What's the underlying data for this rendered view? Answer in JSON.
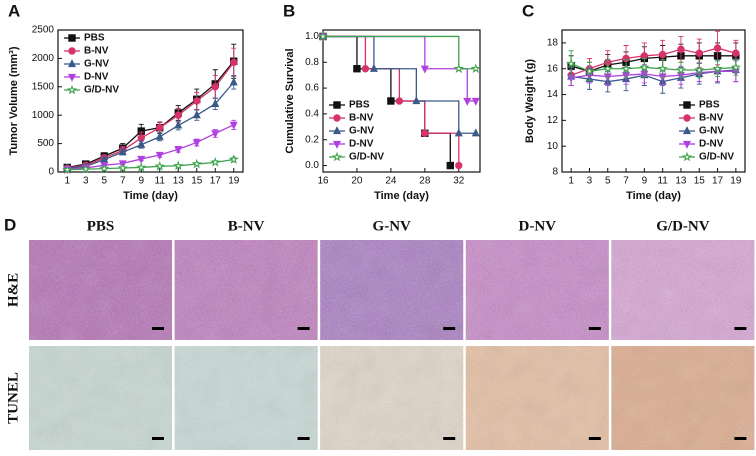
{
  "chart_data": [
    {
      "type": "line",
      "panel": "A",
      "xlabel": "Time (day)",
      "ylabel": "Tumor Volume (mm³)",
      "x": [
        1,
        3,
        5,
        7,
        9,
        11,
        13,
        15,
        17,
        19
      ],
      "xlim": [
        0,
        20
      ],
      "xticks": [
        1,
        3,
        5,
        7,
        9,
        11,
        13,
        15,
        17,
        19
      ],
      "ylim": [
        0,
        2500
      ],
      "yticks": [
        0,
        500,
        1000,
        1500,
        2000,
        2500
      ],
      "legend": "upper left",
      "series": [
        {
          "name": "PBS",
          "color": "#111111",
          "marker": "square",
          "values": [
            80,
            140,
            280,
            420,
            720,
            780,
            1040,
            1280,
            1550,
            1950
          ],
          "errors": [
            20,
            40,
            60,
            80,
            120,
            100,
            130,
            180,
            250,
            300
          ]
        },
        {
          "name": "B-NV",
          "color": "#d6336c",
          "marker": "circle",
          "values": [
            70,
            120,
            250,
            380,
            600,
            780,
            1000,
            1250,
            1500,
            1930
          ],
          "errors": [
            20,
            30,
            50,
            70,
            100,
            90,
            120,
            150,
            200,
            250
          ]
        },
        {
          "name": "G-NV",
          "color": "#3b5a8a",
          "marker": "triangle-up",
          "values": [
            60,
            100,
            220,
            350,
            480,
            620,
            820,
            1000,
            1200,
            1580
          ],
          "errors": [
            15,
            25,
            40,
            50,
            60,
            70,
            80,
            90,
            100,
            120
          ]
        },
        {
          "name": "D-NV",
          "color": "#b040e0",
          "marker": "triangle-down",
          "values": [
            50,
            70,
            120,
            150,
            230,
            300,
            400,
            520,
            680,
            830
          ],
          "errors": [
            10,
            15,
            20,
            25,
            30,
            40,
            50,
            60,
            70,
            80
          ]
        },
        {
          "name": "G/D-NV",
          "color": "#3fa34d",
          "marker": "star",
          "values": [
            40,
            50,
            60,
            70,
            80,
            100,
            110,
            140,
            170,
            220
          ],
          "errors": [
            10,
            10,
            10,
            15,
            15,
            20,
            20,
            25,
            30,
            40
          ]
        }
      ]
    },
    {
      "type": "step",
      "panel": "B",
      "xlabel": "Time (day)",
      "ylabel": "Cumulative Survival",
      "xlim": [
        16,
        34.5
      ],
      "xticks": [
        16,
        20,
        24,
        28,
        32
      ],
      "ylim": [
        -0.05,
        1.05
      ],
      "yticks": [
        {
          "value": 0,
          "label": "0.0"
        },
        0.2,
        0.4,
        0.6,
        0.8,
        {
          "value": 1,
          "label": "1.0"
        }
      ],
      "legend": "lower left",
      "series": [
        {
          "name": "PBS",
          "color": "#111111",
          "marker": "square",
          "x": [
            16,
            20,
            24,
            28,
            31
          ],
          "values": [
            1,
            0.75,
            0.5,
            0.25,
            0
          ]
        },
        {
          "name": "B-NV",
          "color": "#d6336c",
          "marker": "circle",
          "x": [
            16,
            21,
            25,
            28,
            32
          ],
          "values": [
            1,
            0.75,
            0.5,
            0.25,
            0
          ]
        },
        {
          "name": "G-NV",
          "color": "#3b5a8a",
          "marker": "triangle-up",
          "x": [
            16,
            22,
            27,
            32,
            34
          ],
          "values": [
            1,
            0.75,
            0.5,
            0.25,
            0.25
          ]
        },
        {
          "name": "D-NV",
          "color": "#b040e0",
          "marker": "triangle-down",
          "x": [
            16,
            28,
            33,
            34
          ],
          "values": [
            1,
            0.75,
            0.5,
            0.5
          ]
        },
        {
          "name": "G/D-NV",
          "color": "#3fa34d",
          "marker": "star",
          "x": [
            16,
            32,
            34
          ],
          "values": [
            1,
            0.75,
            0.75
          ]
        }
      ]
    },
    {
      "type": "line",
      "panel": "C",
      "xlabel": "Time (day)",
      "ylabel": "Body Weight (g)",
      "x": [
        1,
        3,
        5,
        7,
        9,
        11,
        13,
        15,
        17,
        19
      ],
      "xlim": [
        0,
        20
      ],
      "xticks": [
        1,
        3,
        5,
        7,
        9,
        11,
        13,
        15,
        17,
        19
      ],
      "ylim": [
        8,
        19
      ],
      "yticks": [
        8,
        10,
        12,
        14,
        16,
        18
      ],
      "legend": "lower right",
      "series": [
        {
          "name": "PBS",
          "color": "#111111",
          "marker": "square",
          "values": [
            16.2,
            15.8,
            16.3,
            16.5,
            16.8,
            16.9,
            17.0,
            17.0,
            17.0,
            17.0
          ],
          "errors": [
            0.8,
            0.7,
            0.8,
            0.8,
            0.9,
            0.9,
            0.9,
            1.0,
            1.0,
            1.0
          ]
        },
        {
          "name": "B-NV",
          "color": "#d6336c",
          "marker": "circle",
          "values": [
            15.5,
            16.0,
            16.5,
            16.8,
            17.0,
            17.1,
            17.5,
            17.2,
            17.6,
            17.2
          ],
          "errors": [
            0.8,
            0.8,
            0.9,
            1.0,
            1.0,
            1.1,
            1.0,
            1.1,
            1.3,
            1.0
          ]
        },
        {
          "name": "G-NV",
          "color": "#3b5a8a",
          "marker": "triangle-up",
          "values": [
            15.4,
            15.2,
            15.0,
            15.2,
            15.5,
            15.0,
            15.3,
            15.6,
            15.8,
            15.9
          ],
          "errors": [
            0.7,
            0.8,
            0.8,
            0.9,
            0.8,
            0.9,
            0.8,
            0.8,
            0.9,
            0.9
          ]
        },
        {
          "name": "D-NV",
          "color": "#b040e0",
          "marker": "triangle-down",
          "values": [
            15.3,
            15.5,
            15.4,
            15.5,
            15.6,
            15.4,
            15.5,
            15.7,
            15.8,
            15.8
          ],
          "errors": [
            0.6,
            0.6,
            0.7,
            0.7,
            0.7,
            0.7,
            0.7,
            0.7,
            0.8,
            0.8
          ]
        },
        {
          "name": "G/D-NV",
          "color": "#3fa34d",
          "marker": "star",
          "values": [
            16.4,
            15.8,
            16.0,
            16.0,
            16.1,
            16.0,
            15.9,
            15.9,
            16.0,
            16.1
          ],
          "errors": [
            1.0,
            0.7,
            0.7,
            0.7,
            0.7,
            0.7,
            0.6,
            0.6,
            0.6,
            0.6
          ]
        }
      ]
    }
  ],
  "histology": {
    "panel": "D",
    "columns": [
      "PBS",
      "B-NV",
      "G-NV",
      "D-NV",
      "G/D-NV"
    ],
    "rows": [
      "H&E",
      "TUNEL"
    ]
  }
}
